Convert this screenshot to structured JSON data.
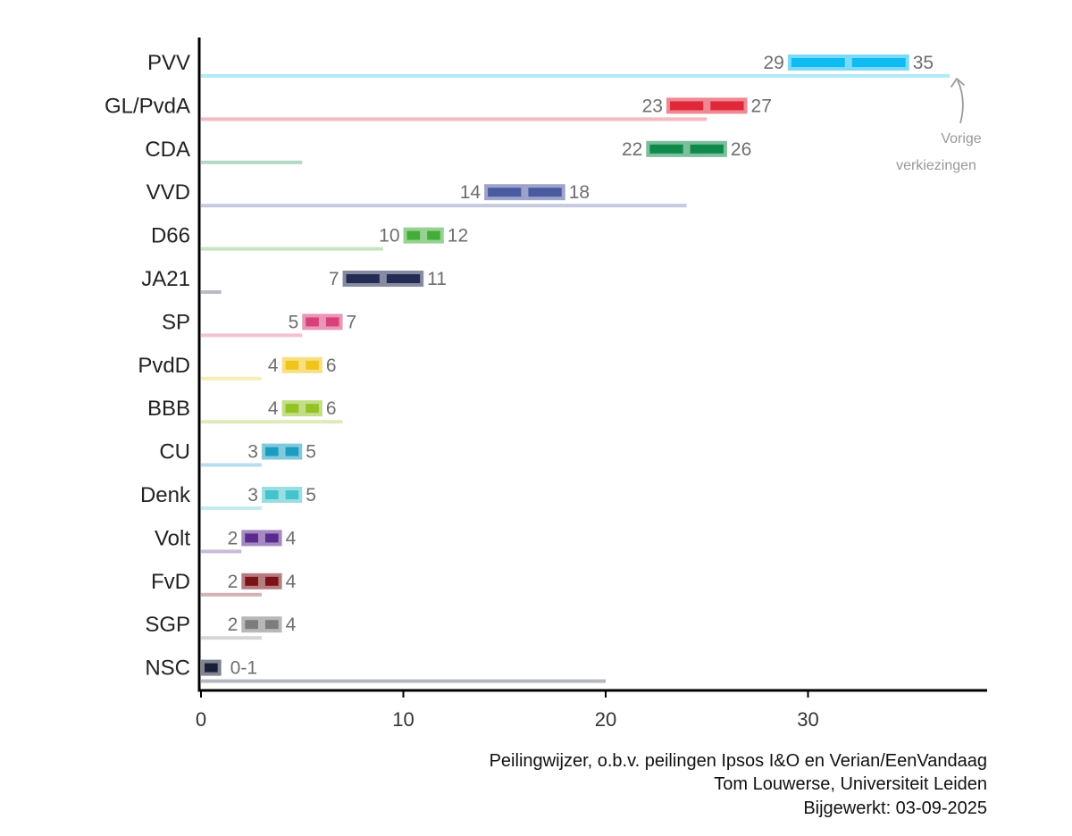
{
  "chart_data": {
    "type": "bar",
    "title": "",
    "xlabel": "",
    "ylabel": "",
    "xlim": [
      0,
      38.5
    ],
    "xticks": [
      0,
      10,
      20,
      30
    ],
    "xtick_labels": [
      "0",
      "10",
      "20",
      "30"
    ],
    "series": [
      {
        "name": "Peilingwijzer (range)",
        "kind": "range"
      },
      {
        "name": "Vorige verkiezingen",
        "kind": "bar"
      }
    ],
    "parties": [
      {
        "name": "PVV",
        "low": 29,
        "high": 35,
        "low_label": "29",
        "high_label": "35",
        "previous": 37,
        "color": "#0ebcf2"
      },
      {
        "name": "GL/PvdA",
        "low": 23,
        "high": 27,
        "low_label": "23",
        "high_label": "27",
        "previous": 25,
        "color": "#e0283a"
      },
      {
        "name": "CDA",
        "low": 22,
        "high": 26,
        "low_label": "22",
        "high_label": "26",
        "previous": 5,
        "color": "#0f8a4a"
      },
      {
        "name": "VVD",
        "low": 14,
        "high": 18,
        "low_label": "14",
        "high_label": "18",
        "previous": 24,
        "color": "#4a5aa0"
      },
      {
        "name": "D66",
        "low": 10,
        "high": 12,
        "low_label": "10",
        "high_label": "12",
        "previous": 9,
        "color": "#44ad3a"
      },
      {
        "name": "JA21",
        "low": 7,
        "high": 11,
        "low_label": "7",
        "high_label": "11",
        "previous": 1,
        "color": "#232c55"
      },
      {
        "name": "SP",
        "low": 5,
        "high": 7,
        "low_label": "5",
        "high_label": "7",
        "previous": 5,
        "color": "#d8407a"
      },
      {
        "name": "PvdD",
        "low": 4,
        "high": 6,
        "low_label": "4",
        "high_label": "6",
        "previous": 3,
        "color": "#f0c41c"
      },
      {
        "name": "BBB",
        "low": 4,
        "high": 6,
        "low_label": "4",
        "high_label": "6",
        "previous": 7,
        "color": "#92c224"
      },
      {
        "name": "CU",
        "low": 3,
        "high": 5,
        "low_label": "3",
        "high_label": "5",
        "previous": 3,
        "color": "#1b9cc0"
      },
      {
        "name": "Denk",
        "low": 3,
        "high": 5,
        "low_label": "3",
        "high_label": "5",
        "previous": 3,
        "color": "#45c3cc"
      },
      {
        "name": "Volt",
        "low": 2,
        "high": 4,
        "low_label": "2",
        "high_label": "4",
        "previous": 2,
        "color": "#5a2a8c"
      },
      {
        "name": "FvD",
        "low": 2,
        "high": 4,
        "low_label": "2",
        "high_label": "4",
        "previous": 3,
        "color": "#7a1218"
      },
      {
        "name": "SGP",
        "low": 2,
        "high": 4,
        "low_label": "2",
        "high_label": "4",
        "previous": 3,
        "color": "#7d7d7d"
      },
      {
        "name": "NSC",
        "low": 0,
        "high": 1,
        "label": "0-1",
        "previous": 20,
        "color": "#1a1f38"
      }
    ],
    "annotation": {
      "line1": "Vorige",
      "line2": "verkiezingen",
      "points_to": "PVV previous bar"
    },
    "credits": [
      "Peilingwijzer, o.b.v. peilingen Ipsos I&O en Verian/EenVandaag",
      "Tom Louwerse, Universiteit Leiden",
      "Bijgewerkt: 03-09-2025"
    ]
  }
}
